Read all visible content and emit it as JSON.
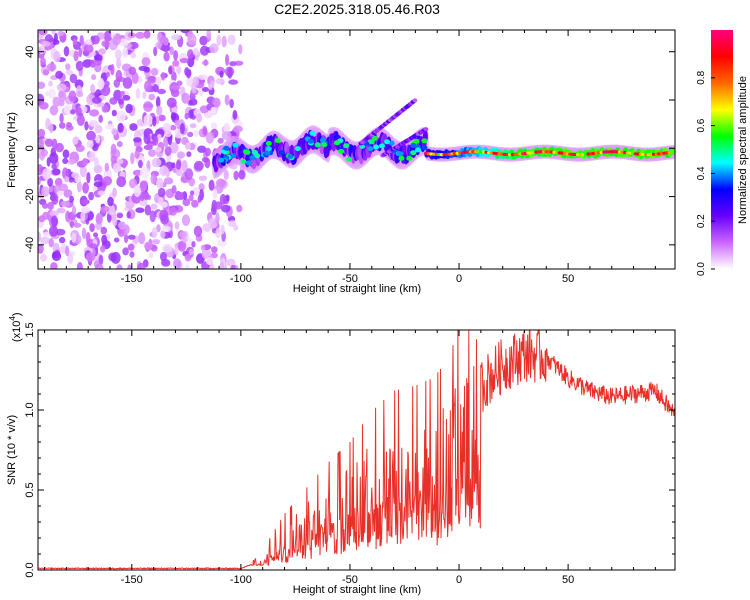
{
  "title": "C2E2.2025.318.05.46.R03",
  "chart_data": [
    {
      "type": "heatmap",
      "xlabel": "Height of straight line (km)",
      "ylabel": "Frequency (Hz)",
      "xlim": [
        -193,
        99
      ],
      "ylim": [
        -50,
        49
      ],
      "xticks": [
        -150,
        -100,
        -50,
        0,
        50
      ],
      "xtick_labels": [
        "-150",
        "-100",
        "-50",
        "0",
        "50"
      ],
      "yticks": [
        -40,
        -20,
        0,
        20,
        40
      ],
      "ytick_labels": [
        "-40",
        "-20",
        "0",
        "20",
        "40"
      ],
      "colorbar": {
        "label": "Normalized spectral amplitude",
        "range": [
          0,
          1
        ],
        "ticks": [
          0.0,
          0.2,
          0.4,
          0.6,
          0.8
        ],
        "tick_labels": [
          "0.0",
          "0.2",
          "0.4",
          "0.6",
          "0.8"
        ],
        "colors": [
          "#ffffff",
          "#cc66ff",
          "#6600ff",
          "#0000ff",
          "#00ffff",
          "#00ff00",
          "#ffff00",
          "#ff6600",
          "#ff0000",
          "#ff0080"
        ]
      },
      "description_features": {
        "noise_region_x": [
          -193,
          -97
        ],
        "signal_start_x": -112,
        "signal_center_freq": -2
      }
    },
    {
      "type": "line",
      "xlabel": "Height of straight line (km)",
      "ylabel": "SNR (10 * v/v)",
      "multiplier_label": "(x10",
      "multiplier_exp": "4",
      "multiplier_close": ")",
      "xlim": [
        -193,
        99
      ],
      "ylim": [
        0,
        1.5
      ],
      "xticks": [
        -150,
        -100,
        -50,
        0,
        50
      ],
      "xtick_labels": [
        "-150",
        "-100",
        "-50",
        "0",
        "50"
      ],
      "yticks": [
        0.0,
        0.5,
        1.0,
        1.5
      ],
      "ytick_labels": [
        "0.0",
        "0.5",
        "1.0",
        "1.5"
      ],
      "color": "#e8302a",
      "envelope": {
        "x": [
          -193,
          -100,
          -92,
          -80,
          -70,
          -60,
          -50,
          -40,
          -30,
          -20,
          -12,
          -5,
          0,
          10,
          20,
          30,
          40,
          50,
          60,
          70,
          80,
          90,
          99
        ],
        "y": [
          0.01,
          0.01,
          0.05,
          0.22,
          0.32,
          0.42,
          0.5,
          0.62,
          0.7,
          0.72,
          0.75,
          0.82,
          0.95,
          1.15,
          1.28,
          1.35,
          1.33,
          1.2,
          1.12,
          1.08,
          1.1,
          1.12,
          0.97
        ]
      }
    }
  ]
}
